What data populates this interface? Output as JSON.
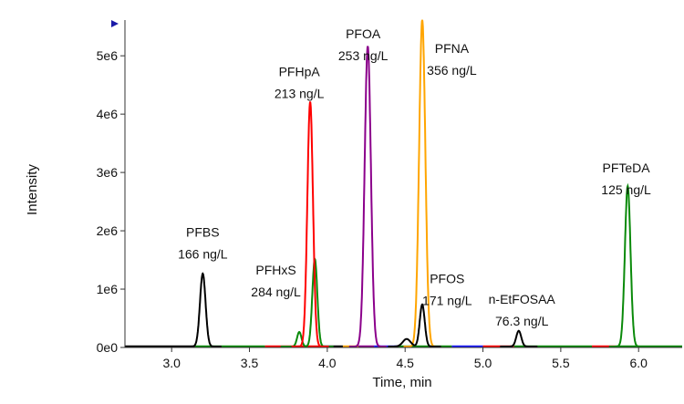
{
  "chart_data": {
    "type": "line",
    "title": "",
    "xlabel": "Time, min",
    "ylabel": "Intensity",
    "xlim": [
      2.7,
      6.28
    ],
    "ylim": [
      0,
      5550000.0
    ],
    "xticks": [
      "3.0",
      "3.5",
      "4.0",
      "4.5",
      "5.0",
      "5.5",
      "6.0"
    ],
    "xtick_values": [
      3.0,
      3.5,
      4.0,
      4.5,
      5.0,
      5.5,
      6.0
    ],
    "yticks": [
      "0e0",
      "1e6",
      "2e6",
      "3e6",
      "4e6",
      "5e6"
    ],
    "ytick_values": [
      0,
      1000000.0,
      2000000.0,
      3000000.0,
      4000000.0,
      5000000.0
    ],
    "grid": false,
    "series": [
      {
        "name": "PFBS",
        "color": "#000000",
        "peaks": [
          {
            "rt": 3.2,
            "height": 1250000.0,
            "width": 0.018
          }
        ]
      },
      {
        "name": "PFHxS",
        "color": "#0a8a0a",
        "peaks": [
          {
            "rt": 3.92,
            "height": 1500000.0,
            "width": 0.016
          },
          {
            "rt": 3.82,
            "height": 250000.0,
            "width": 0.014
          }
        ]
      },
      {
        "name": "PFHpA",
        "color": "#ff0000",
        "peaks": [
          {
            "rt": 3.89,
            "height": 4200000.0,
            "width": 0.018
          }
        ]
      },
      {
        "name": "PFOA",
        "color": "#8b008b",
        "peaks": [
          {
            "rt": 4.26,
            "height": 5150000.0,
            "width": 0.02
          }
        ]
      },
      {
        "name": "PFNA",
        "color": "#ffa500",
        "peaks": [
          {
            "rt": 4.61,
            "height": 5600000.0,
            "width": 0.02
          }
        ]
      },
      {
        "name": "PFOS",
        "color": "#000000",
        "peaks": [
          {
            "rt": 4.61,
            "height": 720000.0,
            "width": 0.016
          },
          {
            "rt": 4.51,
            "height": 130000.0,
            "width": 0.025
          }
        ]
      },
      {
        "name": "n-EtFOSAA",
        "color": "#000000",
        "peaks": [
          {
            "rt": 5.23,
            "height": 270000.0,
            "width": 0.016
          }
        ]
      },
      {
        "name": "PFTeDA",
        "color": "#0a8a0a",
        "peaks": [
          {
            "rt": 5.93,
            "height": 2750000.0,
            "width": 0.018
          }
        ]
      }
    ],
    "annotations": [
      {
        "name": "PFBS",
        "conc": "166 ng/L",
        "x": 3.2,
        "y": 1900000.0
      },
      {
        "name": "PFHxS",
        "conc": "284 ng/L",
        "x": 3.67,
        "y": 1250000.0
      },
      {
        "name": "PFHpA",
        "conc": "213 ng/L",
        "x": 3.82,
        "y": 4650000.0
      },
      {
        "name": "PFOA",
        "conc": "253 ng/L",
        "x": 4.23,
        "y": 5300000.0
      },
      {
        "name": "PFNA",
        "conc": "356 ng/L",
        "x": 4.8,
        "y": 5050000.0
      },
      {
        "name": "PFOS",
        "conc": "171 ng/L",
        "x": 4.77,
        "y": 1100000.0
      },
      {
        "name": "n-EtFOSAA",
        "conc": "76.3 ng/L",
        "x": 5.25,
        "y": 750000.0
      },
      {
        "name": "PFTeDA",
        "conc": "125 ng/L",
        "x": 5.92,
        "y": 3000000.0
      }
    ]
  }
}
